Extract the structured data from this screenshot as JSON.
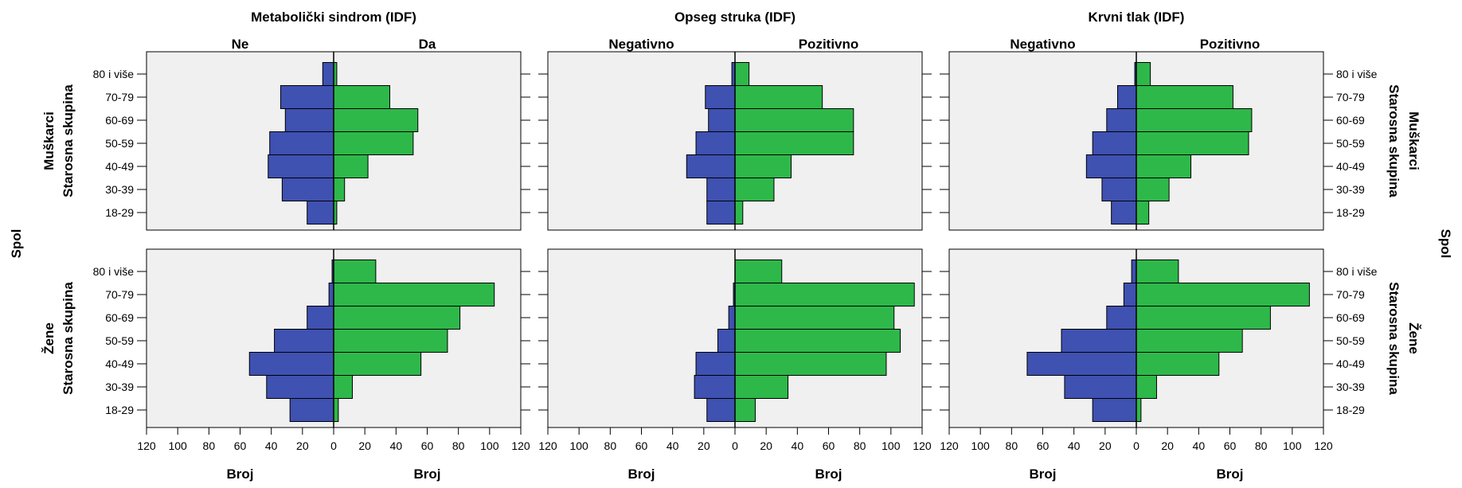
{
  "chart_data": {
    "type": "bar",
    "subtype": "population-pyramid",
    "x_axis_label": "Broj",
    "x_axis_range": [
      -120,
      120
    ],
    "x_ticks": [
      120,
      100,
      80,
      60,
      40,
      20,
      0,
      20,
      40,
      60,
      80,
      100,
      120
    ],
    "row_facet_label": "Spol",
    "y_axis_label": "Starosna skupina",
    "categories": [
      "80 i više",
      "70-79",
      "60-69",
      "50-59",
      "40-49",
      "30-39",
      "18-29"
    ],
    "colors": {
      "negative": "#3f51b1",
      "positive": "#2eb84a",
      "panel_bg": "#f0f0f0"
    },
    "columns": [
      {
        "title": "Metabolički sindrom (IDF)",
        "left_label": "Ne",
        "right_label": "Da"
      },
      {
        "title": "Opseg struka (IDF)",
        "left_label": "Negativno",
        "right_label": "Pozitivno"
      },
      {
        "title": "Krvni tlak (IDF)",
        "left_label": "Negativno",
        "right_label": "Pozitivno"
      }
    ],
    "rows": [
      {
        "label": "Muškarci",
        "panels": [
          {
            "left": [
              7,
              34,
              31,
              41,
              42,
              33,
              17
            ],
            "right": [
              2,
              36,
              54,
              51,
              22,
              7,
              2
            ]
          },
          {
            "left": [
              2,
              19,
              17,
              25,
              31,
              18,
              18
            ],
            "right": [
              9,
              56,
              76,
              76,
              36,
              25,
              5
            ]
          },
          {
            "left": [
              1,
              12,
              19,
              28,
              32,
              22,
              16
            ],
            "right": [
              9,
              62,
              74,
              72,
              35,
              21,
              8
            ]
          }
        ]
      },
      {
        "label": "Žene",
        "panels": [
          {
            "left": [
              1,
              3,
              17,
              38,
              54,
              43,
              28
            ],
            "right": [
              27,
              103,
              81,
              73,
              56,
              12,
              3
            ]
          },
          {
            "left": [
              0,
              1,
              4,
              11,
              25,
              26,
              18
            ],
            "right": [
              30,
              115,
              102,
              106,
              97,
              34,
              13
            ]
          },
          {
            "left": [
              3,
              8,
              19,
              48,
              70,
              46,
              28
            ],
            "right": [
              27,
              111,
              86,
              68,
              53,
              13,
              3
            ]
          }
        ]
      }
    ]
  }
}
